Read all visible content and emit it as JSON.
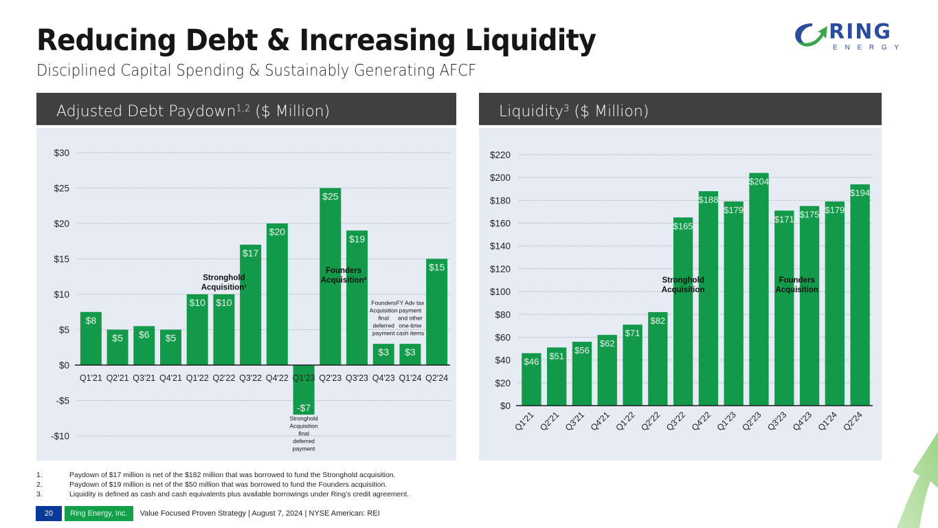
{
  "header": {
    "title": "Reducing Debt & Increasing Liquidity",
    "subtitle": "Disciplined Capital Spending & Sustainably Generating AFCF"
  },
  "logo": {
    "word": "RING",
    "sub": "E N E R G Y",
    "colors": {
      "blue": "#2b4b9b",
      "green": "#3aa54a"
    }
  },
  "panels": {
    "left": {
      "title": "Adjusted Debt Paydown",
      "title_sup": "1,2",
      "title_suffix": " ($ Million)"
    },
    "right": {
      "title": "Liquidity",
      "title_sup": "3",
      "title_suffix": " ($ Million)"
    }
  },
  "colors": {
    "bar": "#13994a",
    "panel_bg": "#e6ebf4",
    "header_bg": "#404040",
    "page_num_bg": "#0a3a99",
    "company_bg": "#14a04a"
  },
  "chart_data": [
    {
      "type": "bar",
      "title": "Adjusted Debt Paydown ($ Million)",
      "categories": [
        "Q1'21",
        "Q2'21",
        "Q3'21",
        "Q4'21",
        "Q1'22",
        "Q2'22",
        "Q3'22",
        "Q4'22",
        "Q1'23",
        "Q2'23",
        "Q3'23",
        "Q4'23",
        "Q1'24",
        "Q2'24"
      ],
      "values": [
        7.5,
        5,
        5.5,
        5,
        10,
        10,
        17,
        20,
        -7,
        25,
        19,
        3,
        3,
        15
      ],
      "data_labels": [
        "$8",
        "$5",
        "$6",
        "$5",
        "$10",
        "$10",
        "$17",
        "$20",
        "-$7",
        "$25",
        "$19",
        "$3",
        "$3",
        "$15"
      ],
      "ylim": [
        -12,
        30
      ],
      "yticks": [
        30,
        25,
        20,
        15,
        10,
        5,
        0,
        -5,
        -10
      ],
      "ytick_labels": [
        "$30",
        "$25",
        "$20",
        "$15",
        "$10",
        "$5",
        "$0",
        "-$5",
        "-$10"
      ],
      "grid": true,
      "annotations": [
        {
          "text": [
            "Stronghold",
            "Acquisition¹"
          ],
          "category": "Q2'22",
          "value": 12,
          "bold": true
        },
        {
          "text": [
            "Founders",
            "Acquisition²"
          ],
          "category": "Q2'23",
          "value": 13,
          "bold": true,
          "offset": 0.5
        },
        {
          "text": [
            "Founders",
            "Acquisition",
            "final",
            "deferred",
            "payment"
          ],
          "category": "Q4'23",
          "value": 8.5,
          "bold": false
        },
        {
          "text": [
            "FY Adv tax",
            "payment",
            "and other",
            "one-time",
            "cash items"
          ],
          "category": "Q1'24",
          "value": 8.5,
          "bold": false
        },
        {
          "text": [
            "Stronghold",
            "Acquisition",
            "final",
            "deferred",
            "payment"
          ],
          "category": "Q1'23",
          "value": -7.8,
          "bold": false
        }
      ]
    },
    {
      "type": "bar",
      "title": "Liquidity ($ Million)",
      "categories": [
        "Q1'21",
        "Q2'21",
        "Q3'21",
        "Q4'21",
        "Q1'22",
        "Q2'22",
        "Q3'22",
        "Q4'22",
        "Q1'23",
        "Q2'23",
        "Q3'23",
        "Q4'23",
        "Q1'24",
        "Q2'24"
      ],
      "values": [
        46,
        51,
        56,
        62,
        71,
        82,
        165,
        188,
        179,
        204,
        171,
        175,
        179,
        194
      ],
      "data_labels": [
        "$46",
        "$51",
        "$56",
        "$62",
        "$71",
        "$82",
        "$165",
        "$188",
        "$179",
        "$204",
        "$171",
        "$175",
        "$179",
        "$194"
      ],
      "ylim": [
        0,
        220
      ],
      "yticks": [
        220,
        200,
        180,
        160,
        140,
        120,
        100,
        80,
        60,
        40,
        20,
        0
      ],
      "ytick_labels": [
        "$220",
        "$200",
        "$180",
        "$160",
        "$140",
        "$120",
        "$100",
        "$80",
        "$60",
        "$40",
        "$20",
        "$0"
      ],
      "grid": true,
      "annotations": [
        {
          "text": [
            "Stronghold",
            "Acquisition"
          ],
          "category": "Q3'22",
          "value": 108,
          "bold": true
        },
        {
          "text": [
            "Founders",
            "Acquisition"
          ],
          "category": "Q3'23",
          "value": 108,
          "bold": true,
          "offset": 0.5
        }
      ]
    }
  ],
  "footnotes": [
    {
      "num": "1.",
      "text": "Paydown of $17 million is net of the $182 million that was borrowed to fund the Stronghold acquisition."
    },
    {
      "num": "2.",
      "text": "Paydown of $19 million is net of the $50 million that was borrowed to fund the Founders acquisition."
    },
    {
      "num": "3.",
      "text": "Liquidity is defined as cash and cash equivalents plus available borrowings under Ring’s credit agreement."
    }
  ],
  "footer": {
    "page_number": "20",
    "company": "Ring Energy, Inc.",
    "text": "Value Focused Proven Strategy  | August 7, 2024 |  NYSE American: REI"
  }
}
